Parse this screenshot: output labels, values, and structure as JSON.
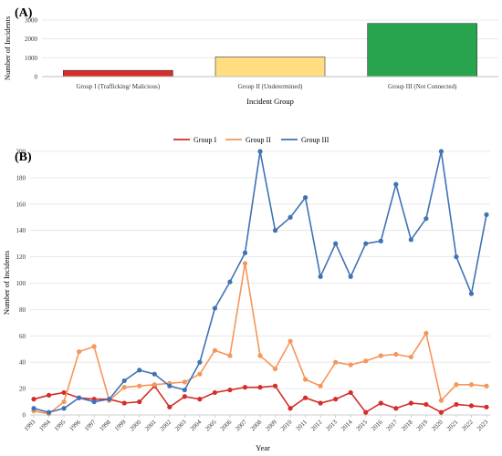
{
  "chart_data": [
    {
      "panel": "(A)",
      "type": "bar",
      "categories": [
        "Group I (Trafficking/ Malicious)",
        "Group II (Undetermined)",
        "Group III (Not Connected)"
      ],
      "values": [
        330,
        1040,
        2820
      ],
      "colors": [
        "#d52d27",
        "#ffdd80",
        "#28a44f"
      ],
      "xlabel": "Incident Group",
      "ylabel": "Number of Incidents",
      "ylim": [
        0,
        3000
      ],
      "yticks": [
        0,
        1000,
        2000,
        3000
      ],
      "grid": true
    },
    {
      "panel": "(B)",
      "type": "line",
      "x": [
        "1993",
        "1994",
        "1995",
        "1996",
        "1997",
        "1998",
        "1999",
        "2000",
        "2001",
        "2002",
        "2003",
        "2004",
        "2005",
        "2006",
        "2007",
        "2008",
        "2009",
        "2010",
        "2011",
        "2012",
        "2013",
        "2014",
        "2015",
        "2016",
        "2017",
        "2018",
        "2019",
        "2020",
        "2021",
        "2022",
        "2023"
      ],
      "series": [
        {
          "name": "Group I",
          "color": "#d52d27",
          "values": [
            12,
            15,
            17,
            13,
            12,
            12,
            9,
            10,
            22,
            6,
            14,
            12,
            17,
            19,
            21,
            21,
            22,
            5,
            13,
            9,
            12,
            17,
            2,
            9,
            5,
            9,
            8,
            2,
            8,
            7,
            6
          ]
        },
        {
          "name": "Group II",
          "color": "#f5965a",
          "values": [
            3,
            1,
            10,
            48,
            52,
            11,
            21,
            22,
            23,
            24,
            25,
            31,
            49,
            45,
            115,
            45,
            35,
            56,
            27,
            22,
            40,
            38,
            41,
            45,
            46,
            44,
            62,
            11,
            23,
            23,
            22
          ]
        },
        {
          "name": "Group III",
          "color": "#3f72b6",
          "values": [
            5,
            2,
            5,
            13,
            10,
            12,
            26,
            34,
            31,
            22,
            19,
            40,
            81,
            101,
            123,
            200,
            140,
            150,
            165,
            105,
            130,
            105,
            130,
            132,
            175,
            133,
            149,
            200,
            120,
            92,
            152
          ]
        }
      ],
      "xlabel": "Year",
      "ylabel": "Number of Incidents",
      "ylim": [
        0,
        200
      ],
      "yticks": [
        0,
        20,
        40,
        60,
        80,
        100,
        120,
        140,
        160,
        180,
        200
      ],
      "grid": true,
      "legend": "top-center"
    }
  ]
}
